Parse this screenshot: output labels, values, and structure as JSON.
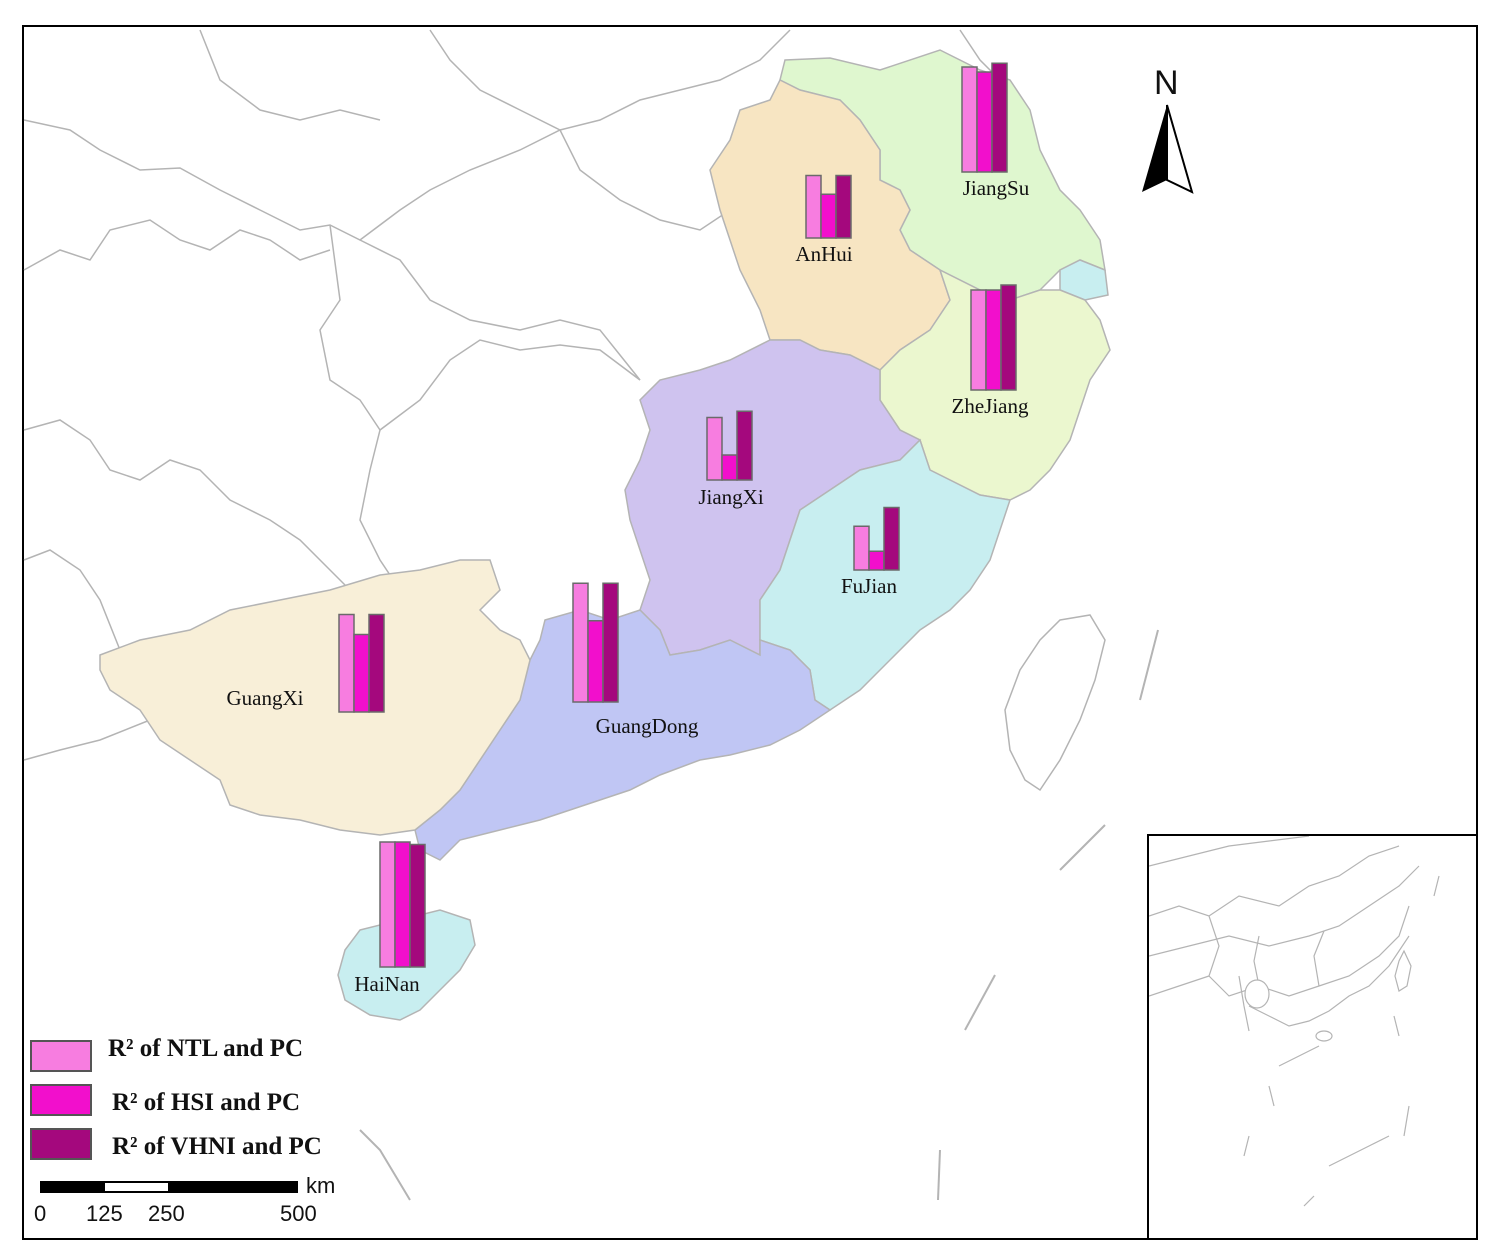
{
  "colors": {
    "ntl": "#f77de0",
    "hsi": "#f20fcc",
    "vhni": "#a4087d",
    "border": "#b4b4b4",
    "jiangsu": "#dff7cf",
    "anhui": "#f7e5c2",
    "zhejiang": "#ebf7cf",
    "jiangxi": "#cfc3ef",
    "fujian": "#c8eef0",
    "guangdong": "#c0c6f4",
    "guangxi": "#f8efd8",
    "hainan": "#c8eef0",
    "shanghai": "#c8eef0"
  },
  "north": {
    "label": "N"
  },
  "provinces": [
    {
      "key": "jiangsu",
      "name": "JiangSu",
      "ntl": 0.84,
      "hsi": 0.8,
      "vhni": 0.87
    },
    {
      "key": "anhui",
      "name": "AnHui",
      "ntl": 0.5,
      "hsi": 0.35,
      "vhni": 0.5
    },
    {
      "key": "zhejiang",
      "name": "ZheJiang",
      "ntl": 0.8,
      "hsi": 0.8,
      "vhni": 0.84
    },
    {
      "key": "jiangxi",
      "name": "JiangXi",
      "ntl": 0.5,
      "hsi": 0.2,
      "vhni": 0.55
    },
    {
      "key": "fujian",
      "name": "FuJian",
      "ntl": 0.35,
      "hsi": 0.15,
      "vhni": 0.5
    },
    {
      "key": "guangdong",
      "name": "GuangDong",
      "ntl": 0.95,
      "hsi": 0.65,
      "vhni": 0.95
    },
    {
      "key": "guangxi",
      "name": "GuangXi",
      "ntl": 0.78,
      "hsi": 0.62,
      "vhni": 0.78
    },
    {
      "key": "hainan",
      "name": "HaiNan",
      "ntl": 1.0,
      "hsi": 1.0,
      "vhni": 0.98
    }
  ],
  "legend": [
    {
      "key": "ntl",
      "label": "R² of NTL and PC"
    },
    {
      "key": "hsi",
      "label": "R² of HSI and PC"
    },
    {
      "key": "vhni",
      "label": "R² of VHNI and PC"
    }
  ],
  "scale_bar": {
    "unit": "km",
    "ticks": [
      "0",
      "125",
      "250",
      "500"
    ]
  }
}
